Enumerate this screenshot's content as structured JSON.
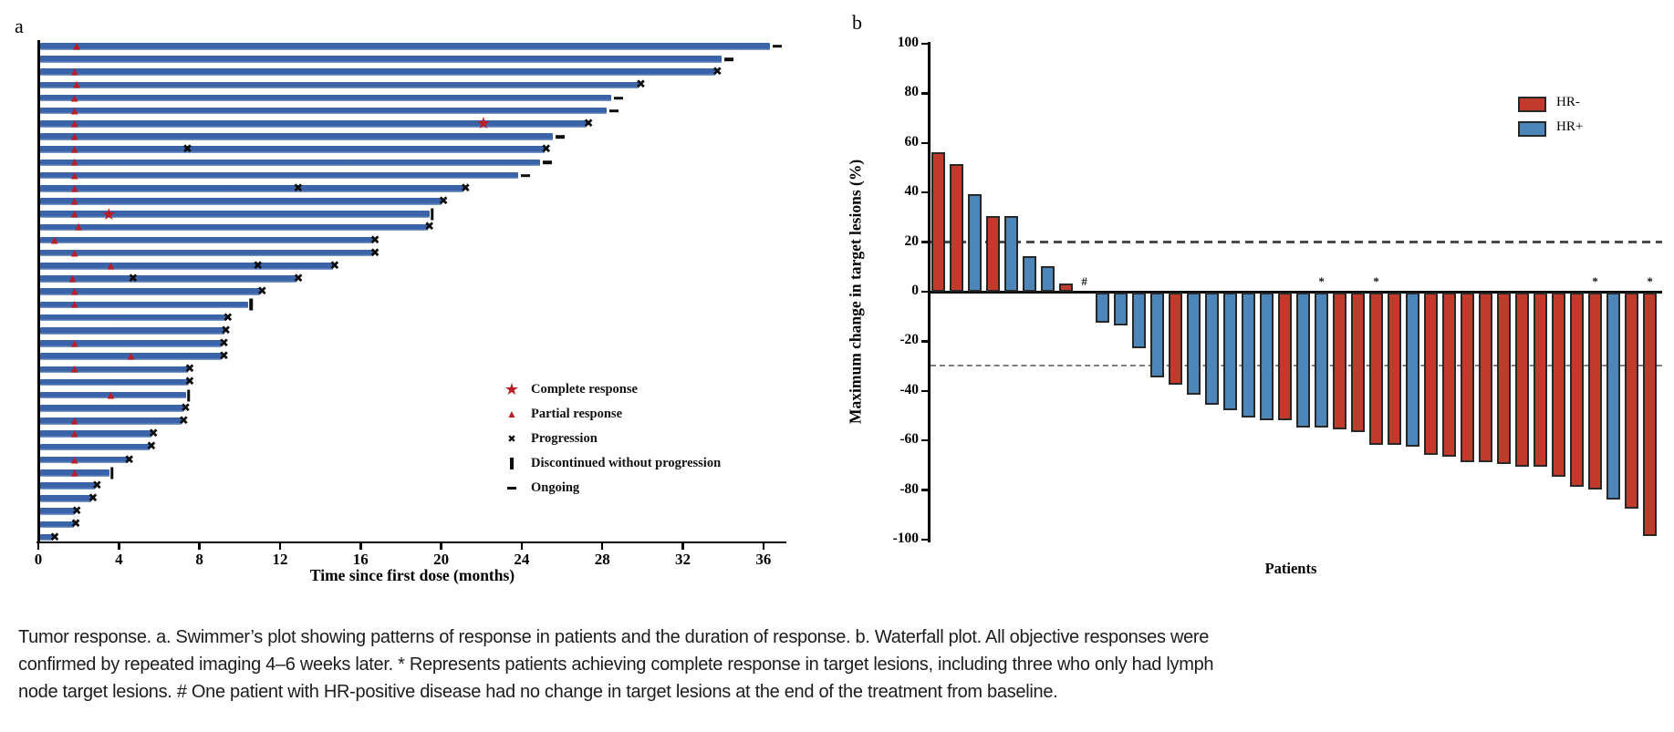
{
  "caption": {
    "lines": [
      "Tumor response. a. Swimmer’s plot showing patterns of response in patients and the duration of response. b. Waterfall plot. All objective responses were",
      "confirmed by repeated imaging 4–6 weeks later. * Represents patients achieving complete response in target lesions, including three who only had lymph",
      "node target lesions. # One patient with HR-positive disease had no change in target lesions at the end of the treatment from baseline."
    ]
  },
  "chart_data": [
    {
      "type": "bar",
      "variant": "swimmer",
      "panel_label": "a",
      "xlabel": "Time since first dose (months)",
      "xticks": [
        0,
        4,
        8,
        12,
        16,
        20,
        24,
        28,
        32,
        36
      ],
      "xlim": [
        0,
        37.2
      ],
      "bar_color": "#3b63a8",
      "bar_edge_color": "#8ba5d2",
      "marker_red": "#bc1c23",
      "marker_black": "#0d0d0d",
      "legend": [
        {
          "symbol": "star",
          "label": "Complete response"
        },
        {
          "symbol": "triangle",
          "label": "Partial response"
        },
        {
          "symbol": "x",
          "label": "Progression"
        },
        {
          "symbol": "bar",
          "label": "Discontinued without progression"
        },
        {
          "symbol": "dash",
          "label": "Ongoing"
        }
      ],
      "patients": [
        {
          "months": 36.3,
          "end": "ongoing",
          "marks": [
            {
              "type": "partial_response",
              "month": 1.9
            }
          ]
        },
        {
          "months": 33.9,
          "end": "ongoing",
          "marks": []
        },
        {
          "months": 33.6,
          "end": "progression",
          "marks": [
            {
              "type": "partial_response",
              "month": 1.8
            }
          ]
        },
        {
          "months": 29.8,
          "end": "progression",
          "marks": [
            {
              "type": "partial_response",
              "month": 1.9
            }
          ]
        },
        {
          "months": 28.4,
          "end": "ongoing",
          "marks": [
            {
              "type": "partial_response",
              "month": 1.8
            }
          ]
        },
        {
          "months": 28.2,
          "end": "ongoing",
          "marks": [
            {
              "type": "partial_response",
              "month": 1.8
            }
          ]
        },
        {
          "months": 27.2,
          "end": "progression",
          "marks": [
            {
              "type": "partial_response",
              "month": 1.8
            },
            {
              "type": "complete_response",
              "month": 22.1
            }
          ]
        },
        {
          "months": 25.5,
          "end": "ongoing",
          "marks": [
            {
              "type": "partial_response",
              "month": 1.8
            }
          ]
        },
        {
          "months": 25.1,
          "end": "progression",
          "marks": [
            {
              "type": "partial_response",
              "month": 1.8
            },
            {
              "type": "progression",
              "month": 7.4
            }
          ]
        },
        {
          "months": 24.9,
          "end": "ongoing",
          "marks": [
            {
              "type": "partial_response",
              "month": 1.8
            }
          ]
        },
        {
          "months": 23.8,
          "end": "ongoing",
          "marks": [
            {
              "type": "partial_response",
              "month": 1.8
            }
          ]
        },
        {
          "months": 21.1,
          "end": "progression",
          "marks": [
            {
              "type": "partial_response",
              "month": 1.8
            },
            {
              "type": "progression",
              "month": 12.9
            }
          ]
        },
        {
          "months": 20.0,
          "end": "progression",
          "marks": [
            {
              "type": "partial_response",
              "month": 1.8
            }
          ]
        },
        {
          "months": 19.4,
          "end": "discontinued",
          "marks": [
            {
              "type": "partial_response",
              "month": 1.8
            },
            {
              "type": "complete_response",
              "month": 3.5
            }
          ]
        },
        {
          "months": 19.3,
          "end": "progression",
          "marks": [
            {
              "type": "partial_response",
              "month": 2.0
            }
          ]
        },
        {
          "months": 16.6,
          "end": "progression",
          "marks": [
            {
              "type": "partial_response",
              "month": 0.8
            }
          ]
        },
        {
          "months": 16.6,
          "end": "progression",
          "marks": [
            {
              "type": "partial_response",
              "month": 1.8
            }
          ]
        },
        {
          "months": 14.6,
          "end": "progression",
          "marks": [
            {
              "type": "partial_response",
              "month": 3.6
            },
            {
              "type": "progression",
              "month": 10.9
            }
          ]
        },
        {
          "months": 12.8,
          "end": "progression",
          "marks": [
            {
              "type": "partial_response",
              "month": 1.7
            },
            {
              "type": "progression",
              "month": 4.7
            }
          ]
        },
        {
          "months": 11.0,
          "end": "progression",
          "marks": [
            {
              "type": "partial_response",
              "month": 1.8
            }
          ]
        },
        {
          "months": 10.4,
          "end": "discontinued",
          "marks": [
            {
              "type": "partial_response",
              "month": 1.8
            }
          ]
        },
        {
          "months": 9.3,
          "end": "progression",
          "marks": []
        },
        {
          "months": 9.2,
          "end": "progression",
          "marks": []
        },
        {
          "months": 9.1,
          "end": "progression",
          "marks": [
            {
              "type": "partial_response",
              "month": 1.8
            }
          ]
        },
        {
          "months": 9.1,
          "end": "progression",
          "marks": [
            {
              "type": "partial_response",
              "month": 4.6
            }
          ]
        },
        {
          "months": 7.4,
          "end": "progression",
          "marks": [
            {
              "type": "partial_response",
              "month": 1.8
            }
          ]
        },
        {
          "months": 7.4,
          "end": "progression",
          "marks": []
        },
        {
          "months": 7.3,
          "end": "discontinued",
          "marks": [
            {
              "type": "partial_response",
              "month": 3.6
            }
          ]
        },
        {
          "months": 7.2,
          "end": "progression",
          "marks": []
        },
        {
          "months": 7.1,
          "end": "progression",
          "marks": [
            {
              "type": "partial_response",
              "month": 1.8
            }
          ]
        },
        {
          "months": 5.6,
          "end": "progression",
          "marks": [
            {
              "type": "partial_response",
              "month": 1.8
            }
          ]
        },
        {
          "months": 5.5,
          "end": "progression",
          "marks": []
        },
        {
          "months": 4.4,
          "end": "progression",
          "marks": [
            {
              "type": "partial_response",
              "month": 1.8
            }
          ]
        },
        {
          "months": 3.5,
          "end": "discontinued",
          "marks": [
            {
              "type": "partial_response",
              "month": 1.8
            }
          ]
        },
        {
          "months": 2.8,
          "end": "progression",
          "marks": []
        },
        {
          "months": 2.6,
          "end": "progression",
          "marks": []
        },
        {
          "months": 1.8,
          "end": "progression",
          "marks": []
        },
        {
          "months": 1.75,
          "end": "progression",
          "marks": []
        },
        {
          "months": 0.7,
          "end": "progression",
          "marks": []
        }
      ]
    },
    {
      "type": "bar",
      "variant": "waterfall",
      "panel_label": "b",
      "ylabel": "Maximum change in target lesions (%)",
      "xlabel": "Patients",
      "yticks": [
        100,
        80,
        60,
        40,
        20,
        0,
        -20,
        -40,
        -60,
        -80,
        -100
      ],
      "ylim": [
        -100,
        100
      ],
      "ref_lines": [
        20,
        -30
      ],
      "legend": [
        {
          "label": "HR-",
          "color": "#c13a2c"
        },
        {
          "label": "HR+",
          "color": "#4d87ba"
        }
      ],
      "group_colors": {
        "HR-": "#c13a2c",
        "HR+": "#4d87ba"
      },
      "patients": [
        {
          "value": 56,
          "group": "HR-"
        },
        {
          "value": 51,
          "group": "HR-"
        },
        {
          "value": 39,
          "group": "HR+"
        },
        {
          "value": 30,
          "group": "HR-"
        },
        {
          "value": 30,
          "group": "HR+"
        },
        {
          "value": 14,
          "group": "HR+"
        },
        {
          "value": 10,
          "group": "HR+"
        },
        {
          "value": 3,
          "group": "HR-"
        },
        {
          "value": 0,
          "group": "HR+",
          "flag": "#"
        },
        {
          "value": -12,
          "group": "HR+"
        },
        {
          "value": -13,
          "group": "HR+"
        },
        {
          "value": -22,
          "group": "HR+"
        },
        {
          "value": -34,
          "group": "HR+"
        },
        {
          "value": -37,
          "group": "HR-"
        },
        {
          "value": -41,
          "group": "HR+"
        },
        {
          "value": -45,
          "group": "HR+"
        },
        {
          "value": -47,
          "group": "HR+"
        },
        {
          "value": -50,
          "group": "HR+"
        },
        {
          "value": -51,
          "group": "HR+"
        },
        {
          "value": -51,
          "group": "HR-"
        },
        {
          "value": -54,
          "group": "HR+"
        },
        {
          "value": -54,
          "group": "HR+",
          "flag": "*"
        },
        {
          "value": -55,
          "group": "HR-"
        },
        {
          "value": -56,
          "group": "HR-"
        },
        {
          "value": -61,
          "group": "HR-",
          "flag": "*"
        },
        {
          "value": -61,
          "group": "HR-"
        },
        {
          "value": -62,
          "group": "HR+"
        },
        {
          "value": -65,
          "group": "HR-"
        },
        {
          "value": -66,
          "group": "HR-"
        },
        {
          "value": -68,
          "group": "HR-"
        },
        {
          "value": -68,
          "group": "HR-"
        },
        {
          "value": -69,
          "group": "HR-"
        },
        {
          "value": -70,
          "group": "HR-"
        },
        {
          "value": -70,
          "group": "HR-"
        },
        {
          "value": -74,
          "group": "HR-"
        },
        {
          "value": -78,
          "group": "HR-"
        },
        {
          "value": -79,
          "group": "HR-",
          "flag": "*"
        },
        {
          "value": -83,
          "group": "HR+"
        },
        {
          "value": -87,
          "group": "HR-"
        },
        {
          "value": -98,
          "group": "HR-",
          "flag": "*"
        }
      ]
    }
  ]
}
